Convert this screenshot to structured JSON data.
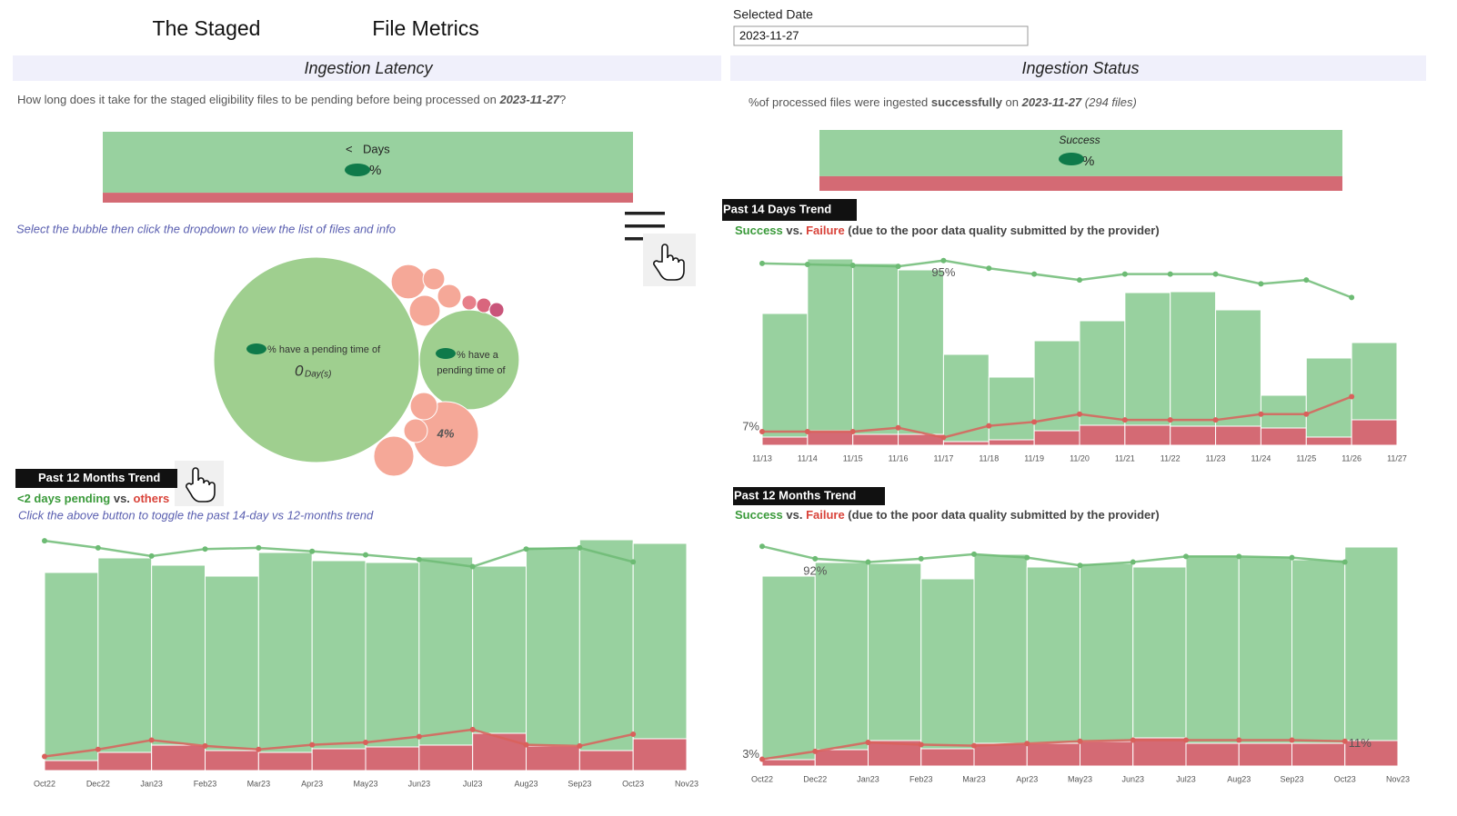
{
  "header": {
    "title_left": "The Staged",
    "title_right": "File Metrics",
    "date_label": "Selected Date",
    "date_value": "2023-11-27"
  },
  "latency": {
    "heading": "Ingestion Latency",
    "question": [
      "How long does it take for the staged eligibility files to be pending before being processed on ",
      "2023-11-27",
      "?"
    ],
    "hint": "Select the bubble then click the dropdown to view the list of files and info"
  },
  "status": {
    "heading": "Ingestion Status",
    "caption": [
      "%",
      "of processed files were ingested ",
      "successfully",
      " on ",
      "2023-11-27",
      " (294 files)"
    ]
  },
  "chart_data": [
    {
      "type": "proportion",
      "ylim": [
        0,
        100
      ],
      "values": [
        86,
        14
      ],
      "colors": [
        "#98d19f",
        "#d46a74"
      ],
      "annotations": [
        "<",
        "Days",
        "%"
      ]
    },
    {
      "type": "proportion",
      "ylim": [
        0,
        100
      ],
      "values": [
        76,
        24
      ],
      "colors": [
        "#98d19f",
        "#d46a74"
      ],
      "annotations": [
        "Success",
        "%"
      ]
    },
    {
      "type": "bubble",
      "values": [
        39.4,
        9.3,
        4,
        1.1,
        0.44,
        0.52,
        0.89,
        0.2,
        0.2,
        0.2,
        0.69,
        0.52,
        1.5
      ],
      "value_labels": [
        null,
        null,
        "4%",
        null,
        null,
        null,
        null,
        null,
        null,
        null,
        null,
        null,
        null
      ],
      "colors": [
        "#9fcf8f",
        "#9fcf8f",
        "#f5a898",
        "#f5a898",
        "#f5a898",
        "#f5a898",
        "#f5a898",
        "#e77f8a",
        "#d9667d",
        "#c9557a",
        "#f5a898",
        "#f5a898",
        "#f5a898"
      ],
      "big_text": "% have a pending time of",
      "big_value": "0",
      "big_unit": "Day(s)",
      "second_text": [
        "% have a",
        "pending time of"
      ]
    },
    {
      "type": "combo",
      "title": "Past 12 Months Trend",
      "subtitle_joiner": " vs. ",
      "subtitle_suffix": "",
      "note": "Click the above button to toggle the past 14-day vs 12-months trend",
      "categories": [
        "Oct22",
        "Dec22",
        "Jan23",
        "Feb23",
        "Mar23",
        "Apr23",
        "May23",
        "Jun23",
        "Jul23",
        "Aug23",
        "Sep23",
        "Oct23",
        "Nov23"
      ],
      "ylim": [
        0,
        258
      ],
      "y2lim": [
        0,
        100
      ],
      "series": [
        {
          "name": "<2 days pending",
          "color": "#98d19f",
          "values": [
            207,
            214,
            198,
            192,
            220,
            207,
            203,
            207,
            184,
            219,
            232,
            215,
            null
          ]
        },
        {
          "name": "others",
          "color": "#d46a74",
          "values": [
            11,
            20,
            28,
            22,
            20,
            24,
            26,
            28,
            41,
            27,
            22,
            35,
            null
          ]
        },
        {
          "axis": "y2",
          "color": "#6dbb74",
          "values": [
            98,
            95,
            91.5,
            94.5,
            95,
            93.5,
            92,
            90,
            87,
            94.5,
            95,
            89,
            null
          ]
        },
        {
          "axis": "y2",
          "color": "#d9605b",
          "values": [
            6,
            9,
            13,
            10.5,
            9,
            11,
            12,
            14.5,
            17.5,
            11,
            10.5,
            15.5,
            null
          ]
        }
      ]
    },
    {
      "type": "combo",
      "title": "Past 14 Days Trend",
      "subtitle_joiner": " vs. ",
      "subtitle_suffix": " (due to the poor data quality submitted by the provider)",
      "categories": [
        "11/13",
        "11/14",
        "11/15",
        "11/16",
        "11/17",
        "11/18",
        "11/19",
        "11/20",
        "11/21",
        "11/22",
        "11/23",
        "11/24",
        "11/25",
        "11/26",
        "11/27"
      ],
      "ylim": [
        0,
        205
      ],
      "y2lim": [
        0,
        100
      ],
      "series": [
        {
          "name": "Success",
          "color": "#98d19f",
          "values": [
            136,
            189,
            188,
            181,
            96,
            69,
            99,
            115,
            146,
            148,
            128,
            36,
            87,
            85,
            null
          ]
        },
        {
          "name": "Failure",
          "color": "#d46a74",
          "values": [
            9,
            16,
            12,
            12,
            4,
            6,
            16,
            22,
            22,
            21,
            21,
            19,
            9,
            28,
            null
          ]
        },
        {
          "axis": "y2",
          "color": "#6dbb74",
          "values": [
            93.5,
            93,
            92.5,
            92,
            95,
            91,
            88,
            85,
            88,
            88,
            88,
            83,
            85,
            76,
            null
          ],
          "value_labels": [
            null,
            null,
            null,
            null,
            "95%",
            null,
            null,
            null,
            null,
            null,
            null,
            null,
            null,
            null,
            null
          ]
        },
        {
          "axis": "y2",
          "color": "#d9605b",
          "values": [
            7,
            7,
            7,
            9,
            4,
            10,
            12,
            16,
            13,
            13,
            13,
            16,
            16,
            25,
            null
          ],
          "value_labels": [
            "7%",
            null,
            null,
            null,
            null,
            null,
            null,
            null,
            null,
            null,
            null,
            null,
            null,
            null,
            null
          ]
        }
      ]
    },
    {
      "type": "combo",
      "title": "Past 12 Months Trend",
      "subtitle_joiner": " vs. ",
      "subtitle_suffix": " (due to the poor data quality submitted by the provider)",
      "categories": [
        "Oct22",
        "Dec22",
        "Jan23",
        "Feb23",
        "Mar23",
        "Apr23",
        "May23",
        "Jun23",
        "Jul23",
        "Aug23",
        "Sep23",
        "Oct23",
        "Nov23"
      ],
      "ylim": [
        0,
        248
      ],
      "y2lim": [
        0,
        100
      ],
      "series": [
        {
          "name": "Success",
          "color": "#98d19f",
          "values": [
            202,
            206,
            195,
            187,
            208,
            194,
            196,
            188,
            207,
            206,
            202,
            213,
            null
          ]
        },
        {
          "name": "Failure",
          "color": "#d46a74",
          "values": [
            7,
            18,
            28,
            19,
            25,
            25,
            27,
            31,
            25,
            25,
            25,
            28,
            null
          ]
        },
        {
          "axis": "y2",
          "color": "#6dbb74",
          "values": [
            97.5,
            92,
            90.5,
            92,
            94,
            92.5,
            89,
            90.5,
            93,
            93,
            92.5,
            90.5,
            null
          ],
          "value_labels": [
            null,
            "92%",
            null,
            null,
            null,
            null,
            null,
            null,
            null,
            null,
            null,
            null,
            null
          ]
        },
        {
          "axis": "y2",
          "color": "#d9605b",
          "values": [
            3,
            6.5,
            10.5,
            9.5,
            9,
            10,
            11,
            11.5,
            11.5,
            11.5,
            11.5,
            11,
            null
          ],
          "value_labels": [
            "3%",
            null,
            null,
            null,
            null,
            null,
            null,
            null,
            null,
            null,
            null,
            "11%",
            null
          ]
        }
      ]
    }
  ]
}
